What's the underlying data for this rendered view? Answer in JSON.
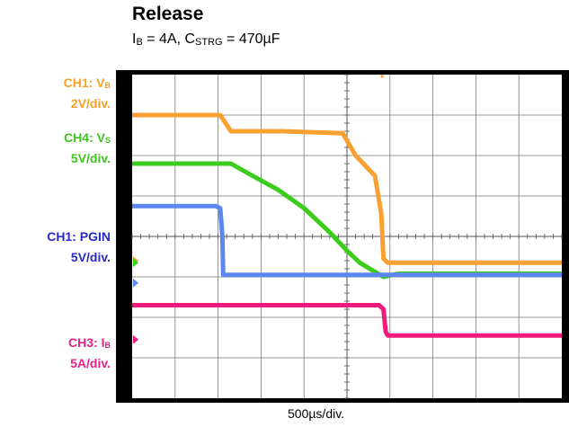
{
  "title": "Release",
  "subtitle": {
    "i_main": "I",
    "i_sub": "B",
    "i_rest": " = 4A, C",
    "c_sub": "STRG",
    "c_rest": " = 470µF"
  },
  "channels": [
    {
      "id": "ch1_vb",
      "line1_main": "CH1: V",
      "line1_sub": "B",
      "line2": "2V/div.",
      "color": "#f5a226"
    },
    {
      "id": "ch4_vs",
      "line1_main": "CH4: V",
      "line1_sub": "S",
      "line2": "5V/div.",
      "color": "#3ec51e"
    },
    {
      "id": "ch1_pgin",
      "line1_main": "CH1: PGIN",
      "line1_sub": "",
      "line2": "5V/div.",
      "color": "#2a2ac8"
    },
    {
      "id": "ch3_ib",
      "line1_main": "CH3: I",
      "line1_sub": "B",
      "line2": "5A/div.",
      "color": "#e8208a"
    }
  ],
  "xlabel": "500µs/div.",
  "chart_data": {
    "type": "line",
    "title": "Release",
    "xlabel": "500µs/div.",
    "x_unit": "div",
    "xlim": [
      0,
      10
    ],
    "ylim": [
      0,
      8
    ],
    "grid": true,
    "grid_divisions": {
      "x": 10,
      "y": 8
    },
    "series": [
      {
        "name": "CH1: VB",
        "color": "#f8a030",
        "scale": "2V/div.",
        "points": [
          [
            0,
            7.0
          ],
          [
            2.05,
            7.0
          ],
          [
            2.3,
            6.6
          ],
          [
            3.5,
            6.6
          ],
          [
            4.9,
            6.55
          ],
          [
            5.2,
            6.0
          ],
          [
            5.65,
            5.5
          ],
          [
            5.8,
            4.55
          ],
          [
            5.85,
            3.45
          ],
          [
            5.95,
            3.35
          ],
          [
            10,
            3.35
          ]
        ]
      },
      {
        "name": "CH4: VS",
        "color": "#3ccc1c",
        "scale": "5V/div.",
        "points": [
          [
            0,
            5.8
          ],
          [
            2.0,
            5.8
          ],
          [
            2.3,
            5.8
          ],
          [
            2.8,
            5.5
          ],
          [
            3.4,
            5.15
          ],
          [
            4.0,
            4.7
          ],
          [
            4.6,
            4.1
          ],
          [
            5.0,
            3.65
          ],
          [
            5.3,
            3.35
          ],
          [
            5.85,
            3.0
          ],
          [
            6.2,
            3.08
          ],
          [
            10,
            3.08
          ]
        ]
      },
      {
        "name": "CH1: PGIN",
        "color": "#5b87ee",
        "scale": "5V/div.",
        "points": [
          [
            0,
            4.75
          ],
          [
            1.95,
            4.75
          ],
          [
            2.05,
            4.7
          ],
          [
            2.1,
            4.0
          ],
          [
            2.12,
            3.05
          ],
          [
            10,
            3.05
          ]
        ]
      },
      {
        "name": "CH3: IB",
        "color": "#ee1b7c",
        "scale": "5A/div.",
        "points": [
          [
            0,
            2.3
          ],
          [
            5.75,
            2.3
          ],
          [
            5.85,
            2.2
          ],
          [
            5.9,
            1.65
          ],
          [
            5.95,
            1.55
          ],
          [
            10,
            1.55
          ]
        ]
      }
    ],
    "ground_markers": [
      {
        "series": "CH1: VB",
        "y": 3.4
      },
      {
        "series": "CH4: VS",
        "y": 3.35
      },
      {
        "series": "CH1: PGIN",
        "y": 2.85
      },
      {
        "series": "CH3: IB",
        "y": 1.45
      }
    ]
  }
}
